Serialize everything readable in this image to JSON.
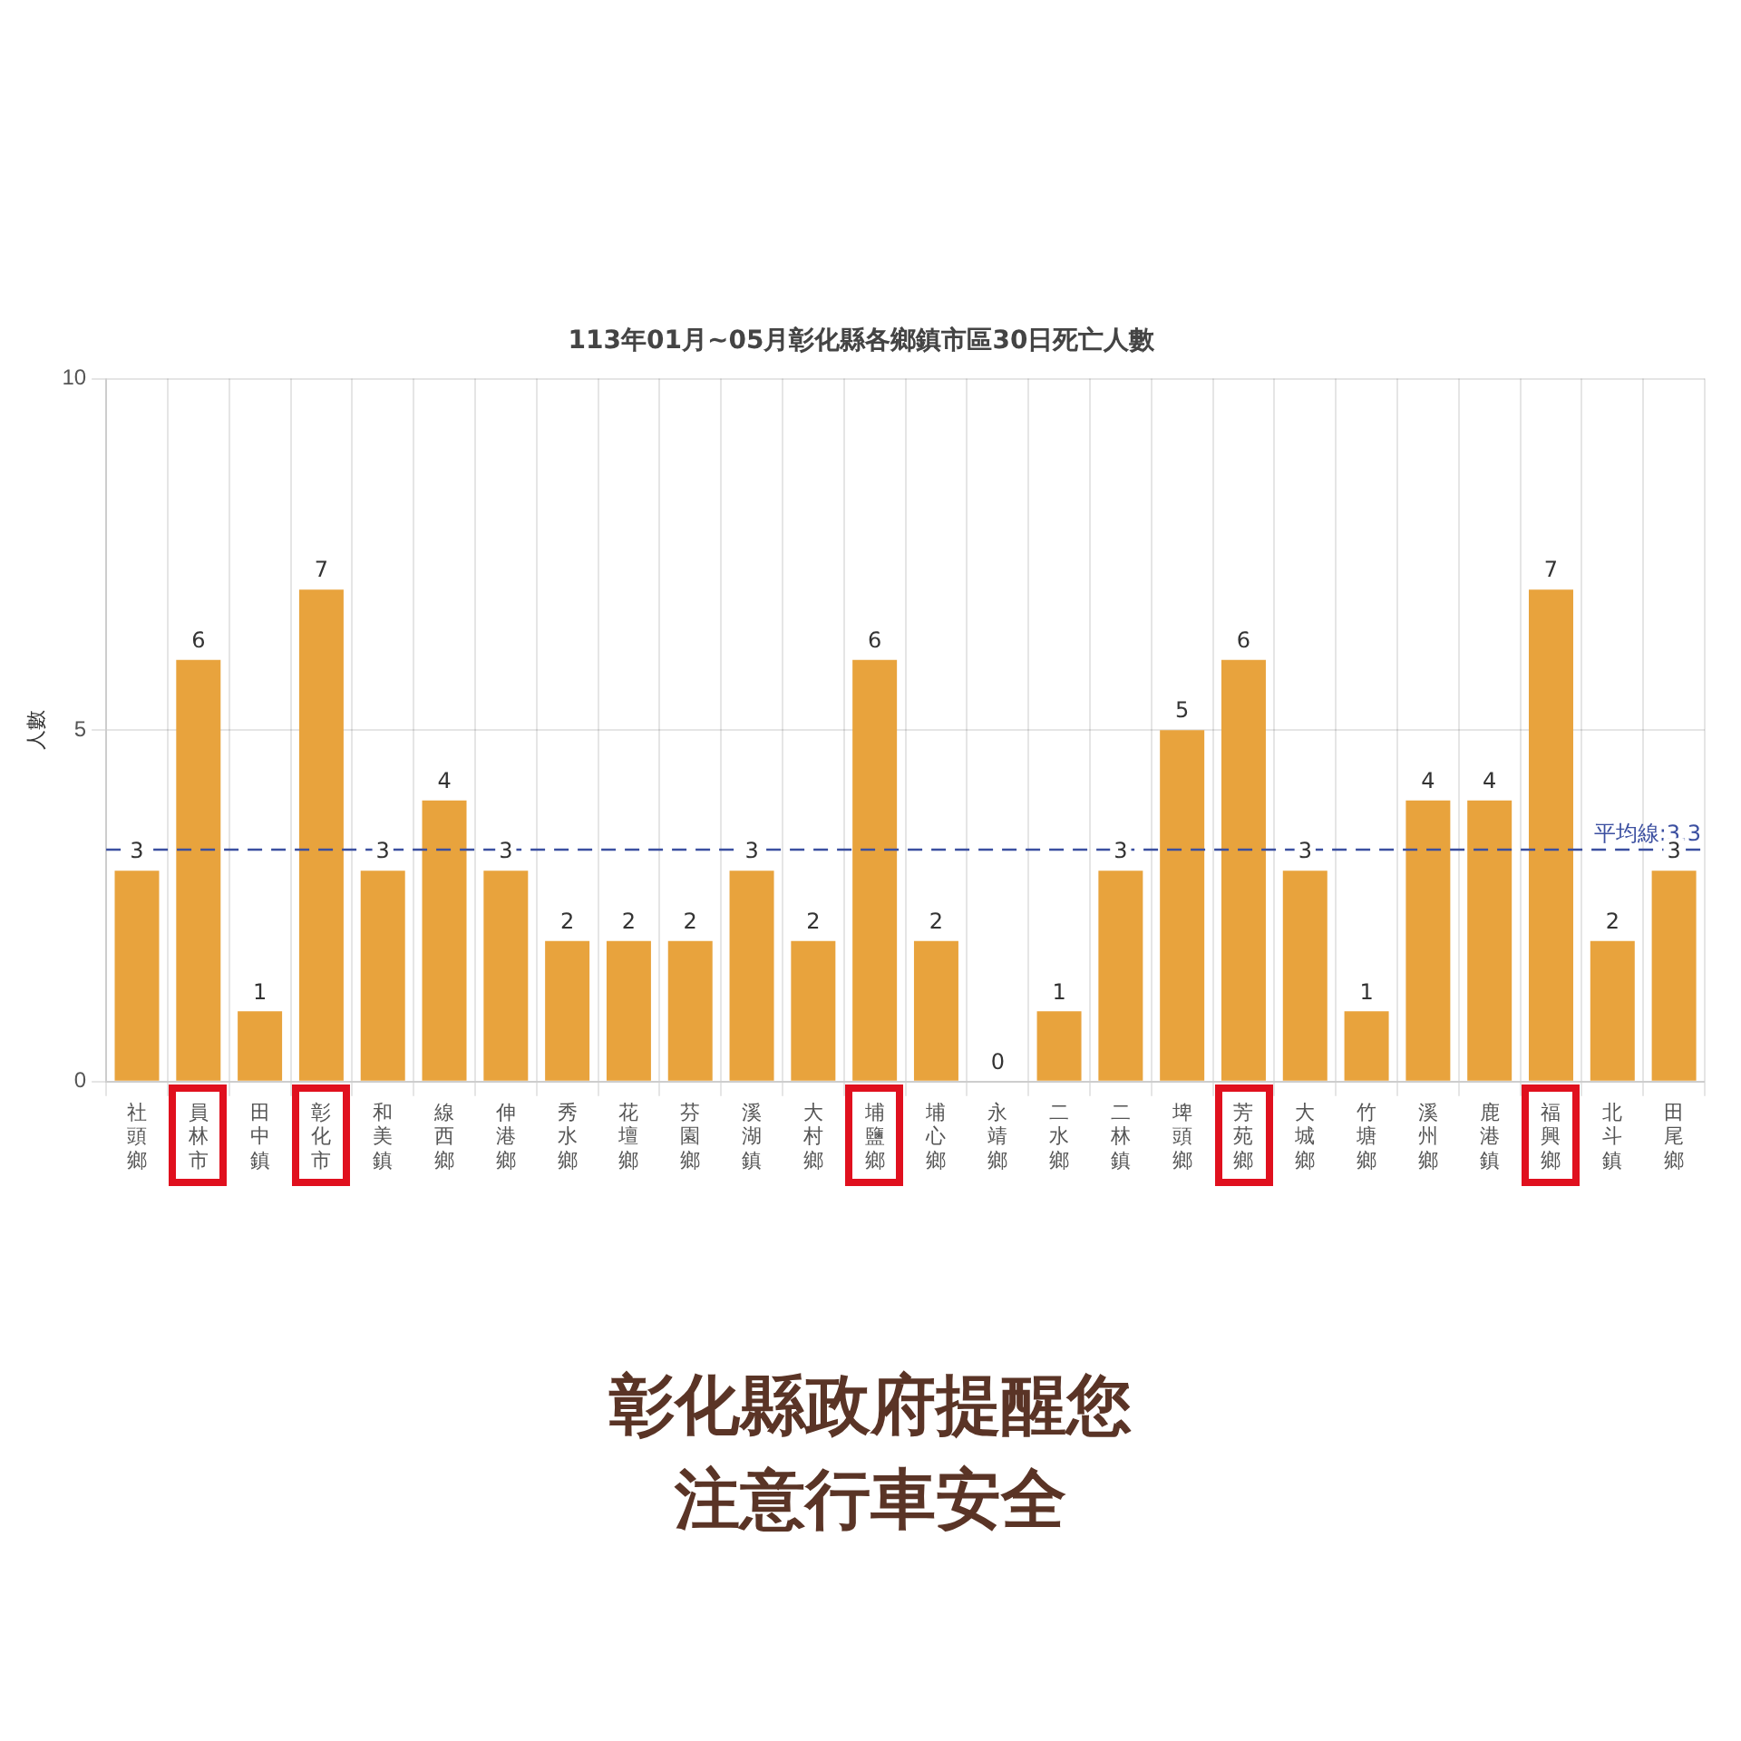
{
  "chart_data": {
    "type": "bar",
    "title": "113年01月~05月彰化縣各鄉鎮市區30日死亡人數",
    "ylabel": "人數",
    "categories": [
      "社頭鄉",
      "員林市",
      "田中鎮",
      "彰化市",
      "和美鎮",
      "線西鄉",
      "伸港鄉",
      "秀水鄉",
      "花壇鄉",
      "芬園鄉",
      "溪湖鎮",
      "大村鄉",
      "埔鹽鄉",
      "埔心鄉",
      "永靖鄉",
      "二水鄉",
      "二林鎮",
      "埤頭鄉",
      "芳苑鄉",
      "大城鄉",
      "竹塘鄉",
      "溪州鄉",
      "鹿港鎮",
      "福興鄉",
      "北斗鎮",
      "田尾鄉"
    ],
    "values": [
      3,
      6,
      1,
      7,
      3,
      4,
      3,
      2,
      2,
      2,
      3,
      2,
      6,
      2,
      0,
      1,
      3,
      5,
      6,
      3,
      1,
      4,
      4,
      7,
      2,
      3
    ],
    "color": "#e8a33d",
    "ylim": [
      0,
      10
    ],
    "yticks": [
      0,
      5,
      10
    ],
    "grid": true,
    "data_labels": true,
    "legend": false,
    "ref_lines": [
      {
        "axis": "y",
        "value": 3.3,
        "label": "平均線:3.3",
        "color": "#3b4fa0",
        "line_style": "dashed"
      }
    ],
    "annotations": [
      "彰化縣政府提醒您",
      "注意行車安全"
    ]
  }
}
